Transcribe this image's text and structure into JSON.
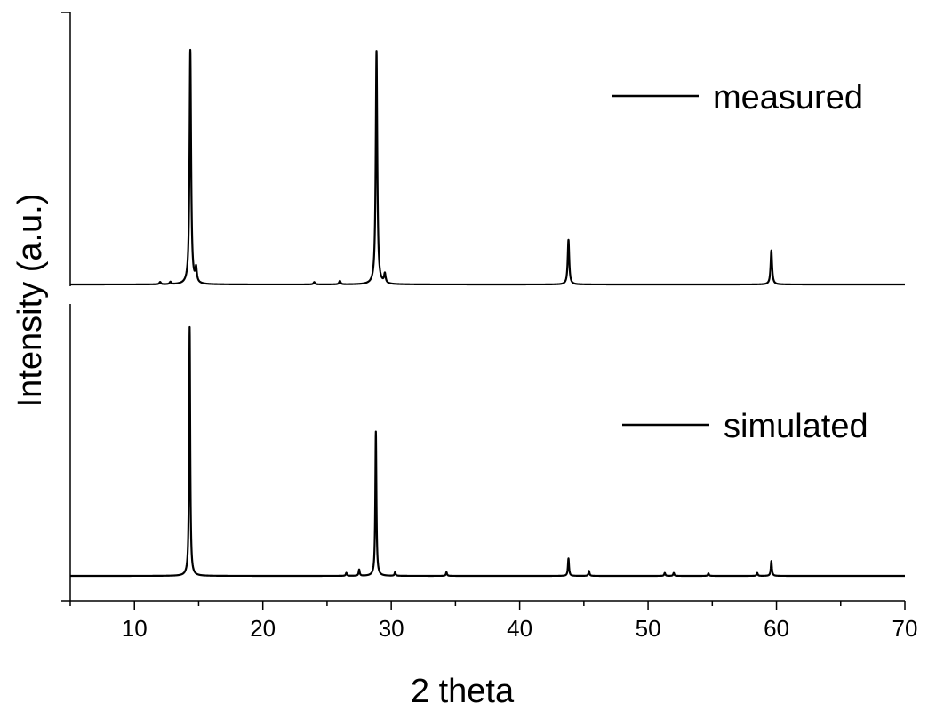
{
  "chart_data": {
    "type": "line",
    "xlabel": "2 theta",
    "ylabel": "Intensity (a.u.)",
    "xlim": [
      5,
      70
    ],
    "xticks": [
      10,
      20,
      30,
      40,
      50,
      60,
      70
    ],
    "grid": false,
    "legend_placement": "right, beside each trace",
    "series": [
      {
        "name": "measured",
        "color": "#000000",
        "peaks": [
          {
            "x": 12.0,
            "y": 0.01
          },
          {
            "x": 12.8,
            "y": 0.01
          },
          {
            "x": 14.35,
            "y": 1.0
          },
          {
            "x": 14.8,
            "y": 0.06
          },
          {
            "x": 24.0,
            "y": 0.01
          },
          {
            "x": 26.0,
            "y": 0.015
          },
          {
            "x": 28.85,
            "y": 0.995
          },
          {
            "x": 29.5,
            "y": 0.04
          },
          {
            "x": 43.8,
            "y": 0.19
          },
          {
            "x": 59.6,
            "y": 0.145
          }
        ]
      },
      {
        "name": "simulated",
        "color": "#000000",
        "peaks": [
          {
            "x": 14.3,
            "y": 1.0
          },
          {
            "x": 26.5,
            "y": 0.012
          },
          {
            "x": 27.5,
            "y": 0.025
          },
          {
            "x": 28.8,
            "y": 0.58
          },
          {
            "x": 30.3,
            "y": 0.015
          },
          {
            "x": 34.3,
            "y": 0.015
          },
          {
            "x": 43.8,
            "y": 0.07
          },
          {
            "x": 45.4,
            "y": 0.02
          },
          {
            "x": 51.3,
            "y": 0.012
          },
          {
            "x": 52.0,
            "y": 0.012
          },
          {
            "x": 54.7,
            "y": 0.01
          },
          {
            "x": 58.5,
            "y": 0.012
          },
          {
            "x": 59.6,
            "y": 0.06
          }
        ]
      }
    ]
  }
}
